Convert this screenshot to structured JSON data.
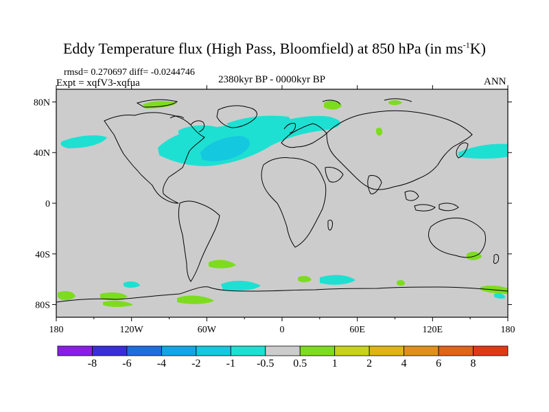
{
  "header": {
    "title_main": "Eddy Temperature flux (High Pass, Bloomfield) at 850 hPa (in ms",
    "title_sup": "-1",
    "title_end": "K)",
    "stats": "rmsd= 0.270697  diff= -0.0244746",
    "expt": "Expt = xqfV3-xqfua",
    "period": "2380kyr BP - 0000kyr BP",
    "season": "ANN"
  },
  "axes": {
    "lat_labels": [
      "80N",
      "40N",
      "0",
      "40S",
      "80S"
    ],
    "lon_labels": [
      "180",
      "120W",
      "60W",
      "0",
      "60E",
      "120E",
      "180"
    ]
  },
  "colorbar": {
    "colors": [
      "#8a1ee6",
      "#3a2ed8",
      "#1e6ee0",
      "#12a6e6",
      "#14c8e0",
      "#1ee0d2",
      "#cccccc",
      "#7ddc1f",
      "#c8d21a",
      "#e0b414",
      "#e0901a",
      "#e0641a",
      "#e03a14"
    ],
    "labels": [
      "-8",
      "-6",
      "-4",
      "-2",
      "-1",
      "-0.5",
      "0.5",
      "1",
      "2",
      "4",
      "6",
      "8"
    ]
  },
  "colors": {
    "background_field": "#cccccc",
    "negative_small": "#1ee0d2",
    "negative_medium": "#14c8e0",
    "positive_small": "#7ddc1f"
  }
}
